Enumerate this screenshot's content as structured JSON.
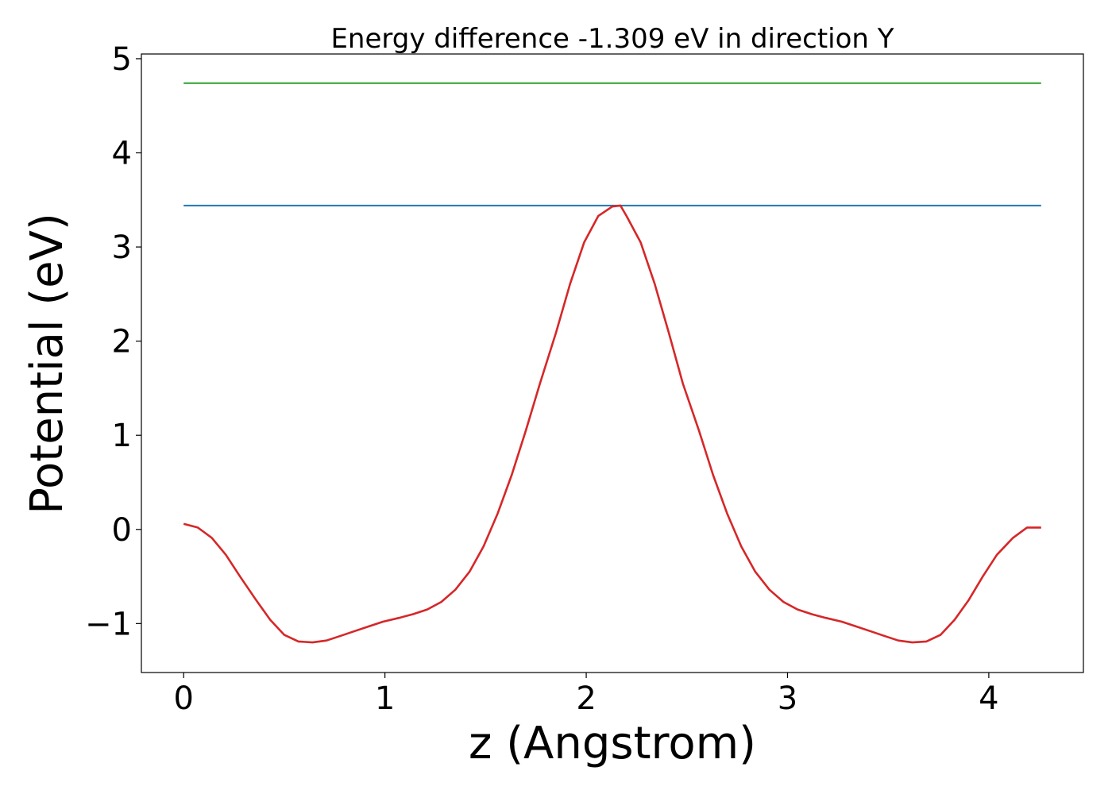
{
  "chart_data": {
    "type": "line",
    "title": "Energy difference -1.309 eV in direction Y",
    "xlabel": "z (Angstrom)",
    "ylabel": "Potential (eV)",
    "xlim": [
      -0.21,
      4.47
    ],
    "ylim": [
      -1.52,
      5.05
    ],
    "xticks": [
      0,
      1,
      2,
      3,
      4
    ],
    "xtick_labels": [
      "0",
      "1",
      "2",
      "3",
      "4"
    ],
    "yticks": [
      -1,
      0,
      1,
      2,
      3,
      4,
      5
    ],
    "ytick_labels": [
      "−1",
      "0",
      "1",
      "2",
      "3",
      "4",
      "5"
    ],
    "grid": false,
    "series": [
      {
        "color": "#2ca02c",
        "x": [
          0,
          4.26
        ],
        "y": [
          4.74,
          4.74
        ]
      },
      {
        "color": "#1f77b4",
        "x": [
          0,
          4.26
        ],
        "y": [
          3.44,
          3.44
        ]
      },
      {
        "color": "#d62728",
        "x": [
          0,
          0.07,
          0.14,
          0.21,
          0.28,
          0.36,
          0.43,
          0.5,
          0.57,
          0.64,
          0.71,
          0.78,
          0.85,
          0.92,
          0.99,
          1.07,
          1.14,
          1.21,
          1.28,
          1.35,
          1.42,
          1.49,
          1.56,
          1.63,
          1.7,
          1.77,
          1.85,
          1.92,
          1.99,
          2.06,
          2.13,
          2.17,
          2.2,
          2.27,
          2.34,
          2.41,
          2.48,
          2.56,
          2.63,
          2.7,
          2.77,
          2.84,
          2.91,
          2.98,
          3.05,
          3.12,
          3.19,
          3.27,
          3.34,
          3.41,
          3.48,
          3.55,
          3.62,
          3.69,
          3.76,
          3.83,
          3.9,
          3.97,
          4.04,
          4.12,
          4.19,
          4.26
        ],
        "y": [
          0.06,
          0.02,
          -0.09,
          -0.27,
          -0.5,
          -0.75,
          -0.96,
          -1.12,
          -1.19,
          -1.2,
          -1.18,
          -1.13,
          -1.08,
          -1.03,
          -0.98,
          -0.94,
          -0.9,
          -0.85,
          -0.77,
          -0.64,
          -0.45,
          -0.18,
          0.17,
          0.58,
          1.05,
          1.55,
          2.09,
          2.61,
          3.05,
          3.33,
          3.43,
          3.44,
          3.33,
          3.05,
          2.61,
          2.09,
          1.55,
          1.05,
          0.58,
          0.17,
          -0.18,
          -0.45,
          -0.64,
          -0.77,
          -0.85,
          -0.9,
          -0.94,
          -0.98,
          -1.03,
          -1.08,
          -1.13,
          -1.18,
          -1.2,
          -1.19,
          -1.12,
          -0.96,
          -0.75,
          -0.5,
          -0.27,
          -0.09,
          0.02,
          0.02
        ]
      }
    ]
  }
}
